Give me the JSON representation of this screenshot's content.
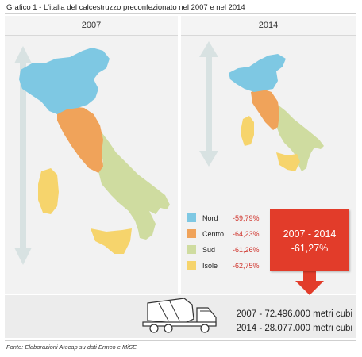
{
  "title": "Grafico 1 - L'italia del calcestruzzo preconfezionato nel 2007 e nel 2014",
  "panels": {
    "left": "2007",
    "right": "2014"
  },
  "colors": {
    "Nord": "#7ec8e3",
    "Centro": "#f0a35a",
    "Sud": "#cfdca0",
    "Isole": "#f6d46c",
    "accent": "#e23c2a"
  },
  "chart_data": {
    "type": "table",
    "title": "Grafico 1 - L'italia del calcestruzzo preconfezionato nel 2007 e nel 2014",
    "categories": [
      "Nord",
      "Centro",
      "Sud",
      "Isole"
    ],
    "variation_pct": [
      -59.79,
      -64.23,
      -61.26,
      -62.75
    ],
    "legend": [
      {
        "label": "Nord",
        "value": "-59,79%"
      },
      {
        "label": "Centro",
        "value": "-64,23%"
      },
      {
        "label": "Sud",
        "value": "-61,26%"
      },
      {
        "label": "Isole",
        "value": "-62,75%"
      }
    ],
    "total": {
      "period": "2007 - 2014",
      "value": "-61,27%",
      "value_pct": -61.27
    },
    "volumes": [
      {
        "year": "2007",
        "text": "2007 - 72.496.000 metri cubi",
        "value_m3": 72496000
      },
      {
        "year": "2014",
        "text": "2014 - 28.077.000 metri cubi",
        "value_m3": 28077000
      }
    ]
  },
  "source": "Fonte: Elaborazioni Atecap su dati Ermco e MiSE"
}
